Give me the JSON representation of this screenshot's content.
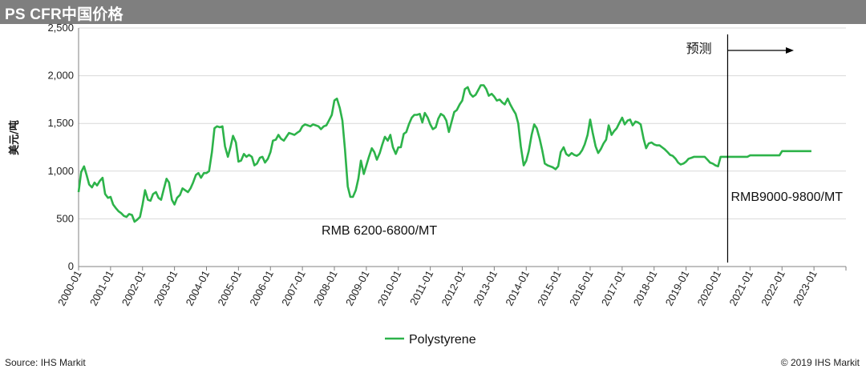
{
  "header": {
    "title": "PS CFR中国价格"
  },
  "footer": {
    "source": "Source: IHS Markit",
    "copyright": "© 2019 IHS Markit"
  },
  "colors": {
    "header_bg": "#7f7f7f",
    "series": "#2db34a",
    "grid": "#d9d9d9",
    "axis": "#808080"
  },
  "chart_data": {
    "type": "line",
    "title": "PS CFR中国价格",
    "ylabel": "美元/吨",
    "xlabel": "",
    "ylim": [
      0,
      2500
    ],
    "yticks": [
      0,
      500,
      1000,
      1500,
      2000,
      2500
    ],
    "ytick_labels": [
      "0",
      "500",
      "1,000",
      "1,500",
      "2,000",
      "2,500"
    ],
    "xlim": [
      2000.0,
      2024.0
    ],
    "xtick_labels": [
      "2000-01",
      "2001-01",
      "2002-01",
      "2003-01",
      "2004-01",
      "2005-01",
      "2006-01",
      "2007-01",
      "2008-01",
      "2009-01",
      "2010-01",
      "2011-01",
      "2012-01",
      "2013-01",
      "2014-01",
      "2015-01",
      "2016-01",
      "2017-01",
      "2018-01",
      "2019-01",
      "2020-01",
      "2021-01",
      "2022-01",
      "2023-01"
    ],
    "grid": "horizontal",
    "legend": {
      "position": "bottom",
      "entries": [
        "Polystyrene"
      ]
    },
    "forecast_line_x": 2020.3,
    "annotations": [
      {
        "text": "预测",
        "x": 2019.0,
        "y": 2240
      },
      {
        "text": "RMB 6200-6800/MT",
        "x": 2007.6,
        "y": 335
      },
      {
        "text": "RMB9000-9800/MT",
        "x": 2020.4,
        "y": 690
      }
    ],
    "series": [
      {
        "name": "Polystyrene",
        "points": [
          [
            2000.0,
            780
          ],
          [
            2000.08,
            990
          ],
          [
            2000.17,
            1050
          ],
          [
            2000.25,
            960
          ],
          [
            2000.33,
            860
          ],
          [
            2000.42,
            830
          ],
          [
            2000.5,
            880
          ],
          [
            2000.58,
            850
          ],
          [
            2000.67,
            900
          ],
          [
            2000.75,
            930
          ],
          [
            2000.83,
            760
          ],
          [
            2000.92,
            720
          ],
          [
            2001.0,
            730
          ],
          [
            2001.08,
            650
          ],
          [
            2001.17,
            610
          ],
          [
            2001.25,
            580
          ],
          [
            2001.33,
            560
          ],
          [
            2001.42,
            530
          ],
          [
            2001.5,
            520
          ],
          [
            2001.58,
            550
          ],
          [
            2001.67,
            540
          ],
          [
            2001.75,
            470
          ],
          [
            2001.83,
            490
          ],
          [
            2001.92,
            520
          ],
          [
            2002.0,
            650
          ],
          [
            2002.08,
            800
          ],
          [
            2002.17,
            700
          ],
          [
            2002.25,
            690
          ],
          [
            2002.33,
            760
          ],
          [
            2002.42,
            780
          ],
          [
            2002.5,
            720
          ],
          [
            2002.58,
            700
          ],
          [
            2002.67,
            820
          ],
          [
            2002.75,
            920
          ],
          [
            2002.83,
            880
          ],
          [
            2002.92,
            700
          ],
          [
            2003.0,
            650
          ],
          [
            2003.08,
            720
          ],
          [
            2003.17,
            750
          ],
          [
            2003.25,
            820
          ],
          [
            2003.33,
            800
          ],
          [
            2003.42,
            780
          ],
          [
            2003.5,
            820
          ],
          [
            2003.58,
            880
          ],
          [
            2003.67,
            960
          ],
          [
            2003.75,
            980
          ],
          [
            2003.83,
            930
          ],
          [
            2003.92,
            980
          ],
          [
            2004.0,
            980
          ],
          [
            2004.08,
            1000
          ],
          [
            2004.17,
            1200
          ],
          [
            2004.25,
            1450
          ],
          [
            2004.33,
            1470
          ],
          [
            2004.42,
            1460
          ],
          [
            2004.5,
            1470
          ],
          [
            2004.58,
            1260
          ],
          [
            2004.67,
            1150
          ],
          [
            2004.75,
            1250
          ],
          [
            2004.83,
            1370
          ],
          [
            2004.92,
            1300
          ],
          [
            2005.0,
            1100
          ],
          [
            2005.08,
            1110
          ],
          [
            2005.17,
            1180
          ],
          [
            2005.25,
            1150
          ],
          [
            2005.33,
            1170
          ],
          [
            2005.42,
            1150
          ],
          [
            2005.5,
            1060
          ],
          [
            2005.58,
            1080
          ],
          [
            2005.67,
            1140
          ],
          [
            2005.75,
            1150
          ],
          [
            2005.83,
            1090
          ],
          [
            2005.92,
            1130
          ],
          [
            2006.0,
            1200
          ],
          [
            2006.08,
            1320
          ],
          [
            2006.17,
            1330
          ],
          [
            2006.25,
            1380
          ],
          [
            2006.33,
            1340
          ],
          [
            2006.42,
            1320
          ],
          [
            2006.5,
            1360
          ],
          [
            2006.58,
            1400
          ],
          [
            2006.67,
            1390
          ],
          [
            2006.75,
            1380
          ],
          [
            2006.83,
            1400
          ],
          [
            2006.92,
            1420
          ],
          [
            2007.0,
            1470
          ],
          [
            2007.08,
            1490
          ],
          [
            2007.17,
            1480
          ],
          [
            2007.25,
            1470
          ],
          [
            2007.33,
            1490
          ],
          [
            2007.42,
            1480
          ],
          [
            2007.5,
            1470
          ],
          [
            2007.58,
            1440
          ],
          [
            2007.67,
            1470
          ],
          [
            2007.75,
            1480
          ],
          [
            2007.83,
            1530
          ],
          [
            2007.92,
            1590
          ],
          [
            2008.0,
            1740
          ],
          [
            2008.08,
            1760
          ],
          [
            2008.17,
            1660
          ],
          [
            2008.25,
            1530
          ],
          [
            2008.33,
            1230
          ],
          [
            2008.42,
            840
          ],
          [
            2008.5,
            730
          ],
          [
            2008.58,
            730
          ],
          [
            2008.67,
            800
          ],
          [
            2008.75,
            920
          ],
          [
            2008.83,
            1110
          ],
          [
            2008.92,
            970
          ],
          [
            2009.0,
            1060
          ],
          [
            2009.08,
            1150
          ],
          [
            2009.17,
            1240
          ],
          [
            2009.25,
            1200
          ],
          [
            2009.33,
            1120
          ],
          [
            2009.42,
            1190
          ],
          [
            2009.5,
            1280
          ],
          [
            2009.58,
            1360
          ],
          [
            2009.67,
            1320
          ],
          [
            2009.75,
            1380
          ],
          [
            2009.83,
            1250
          ],
          [
            2009.92,
            1180
          ],
          [
            2010.0,
            1250
          ],
          [
            2010.08,
            1250
          ],
          [
            2010.17,
            1390
          ],
          [
            2010.25,
            1410
          ],
          [
            2010.33,
            1490
          ],
          [
            2010.42,
            1560
          ],
          [
            2010.5,
            1590
          ],
          [
            2010.58,
            1590
          ],
          [
            2010.67,
            1600
          ],
          [
            2010.75,
            1510
          ],
          [
            2010.83,
            1610
          ],
          [
            2010.92,
            1560
          ],
          [
            2011.0,
            1490
          ],
          [
            2011.08,
            1440
          ],
          [
            2011.17,
            1460
          ],
          [
            2011.25,
            1550
          ],
          [
            2011.33,
            1600
          ],
          [
            2011.42,
            1580
          ],
          [
            2011.5,
            1530
          ],
          [
            2011.58,
            1410
          ],
          [
            2011.67,
            1520
          ],
          [
            2011.75,
            1620
          ],
          [
            2011.83,
            1640
          ],
          [
            2011.92,
            1700
          ],
          [
            2012.0,
            1740
          ],
          [
            2012.08,
            1860
          ],
          [
            2012.17,
            1880
          ],
          [
            2012.25,
            1810
          ],
          [
            2012.33,
            1780
          ],
          [
            2012.42,
            1800
          ],
          [
            2012.5,
            1850
          ],
          [
            2012.58,
            1900
          ],
          [
            2012.67,
            1900
          ],
          [
            2012.75,
            1860
          ],
          [
            2012.83,
            1790
          ],
          [
            2012.92,
            1810
          ],
          [
            2013.0,
            1780
          ],
          [
            2013.08,
            1740
          ],
          [
            2013.17,
            1750
          ],
          [
            2013.25,
            1720
          ],
          [
            2013.33,
            1700
          ],
          [
            2013.42,
            1760
          ],
          [
            2013.5,
            1700
          ],
          [
            2013.58,
            1650
          ],
          [
            2013.67,
            1600
          ],
          [
            2013.75,
            1500
          ],
          [
            2013.83,
            1260
          ],
          [
            2013.92,
            1060
          ],
          [
            2014.0,
            1110
          ],
          [
            2014.08,
            1210
          ],
          [
            2014.17,
            1380
          ],
          [
            2014.25,
            1490
          ],
          [
            2014.33,
            1450
          ],
          [
            2014.42,
            1340
          ],
          [
            2014.5,
            1220
          ],
          [
            2014.58,
            1080
          ],
          [
            2014.67,
            1060
          ],
          [
            2014.75,
            1050
          ],
          [
            2014.83,
            1040
          ],
          [
            2014.92,
            1020
          ],
          [
            2015.0,
            1050
          ],
          [
            2015.08,
            1200
          ],
          [
            2015.17,
            1250
          ],
          [
            2015.25,
            1180
          ],
          [
            2015.33,
            1160
          ],
          [
            2015.42,
            1190
          ],
          [
            2015.5,
            1170
          ],
          [
            2015.58,
            1160
          ],
          [
            2015.67,
            1180
          ],
          [
            2015.75,
            1220
          ],
          [
            2015.83,
            1280
          ],
          [
            2015.92,
            1380
          ],
          [
            2016.0,
            1540
          ],
          [
            2016.08,
            1400
          ],
          [
            2016.17,
            1260
          ],
          [
            2016.25,
            1190
          ],
          [
            2016.33,
            1230
          ],
          [
            2016.42,
            1290
          ],
          [
            2016.5,
            1330
          ],
          [
            2016.58,
            1480
          ],
          [
            2016.67,
            1380
          ],
          [
            2016.75,
            1420
          ],
          [
            2016.83,
            1450
          ],
          [
            2016.92,
            1510
          ],
          [
            2017.0,
            1560
          ],
          [
            2017.08,
            1490
          ],
          [
            2017.17,
            1530
          ],
          [
            2017.25,
            1540
          ],
          [
            2017.33,
            1480
          ],
          [
            2017.42,
            1520
          ],
          [
            2017.5,
            1510
          ],
          [
            2017.58,
            1490
          ],
          [
            2017.67,
            1340
          ],
          [
            2017.75,
            1240
          ],
          [
            2017.83,
            1290
          ],
          [
            2017.92,
            1300
          ],
          [
            2018.0,
            1280
          ],
          [
            2018.08,
            1270
          ],
          [
            2018.17,
            1270
          ],
          [
            2018.25,
            1250
          ],
          [
            2018.33,
            1230
          ],
          [
            2018.42,
            1200
          ],
          [
            2018.5,
            1170
          ],
          [
            2018.58,
            1160
          ],
          [
            2018.67,
            1130
          ],
          [
            2018.75,
            1090
          ],
          [
            2018.83,
            1070
          ],
          [
            2018.92,
            1080
          ],
          [
            2019.0,
            1100
          ],
          [
            2019.08,
            1130
          ],
          [
            2019.17,
            1140
          ],
          [
            2019.25,
            1150
          ],
          [
            2019.33,
            1150
          ],
          [
            2019.42,
            1150
          ],
          [
            2019.5,
            1150
          ],
          [
            2019.58,
            1150
          ],
          [
            2019.67,
            1120
          ],
          [
            2019.75,
            1090
          ],
          [
            2019.83,
            1080
          ],
          [
            2019.92,
            1060
          ],
          [
            2020.0,
            1050
          ],
          [
            2020.08,
            1150
          ],
          [
            2020.17,
            1150
          ],
          [
            2020.33,
            1150
          ],
          [
            2020.5,
            1150
          ],
          [
            2020.67,
            1150
          ],
          [
            2020.83,
            1150
          ],
          [
            2020.92,
            1150
          ],
          [
            2021.0,
            1165
          ],
          [
            2021.17,
            1165
          ],
          [
            2021.33,
            1165
          ],
          [
            2021.5,
            1165
          ],
          [
            2021.67,
            1165
          ],
          [
            2021.83,
            1165
          ],
          [
            2021.92,
            1165
          ],
          [
            2022.0,
            1210
          ],
          [
            2022.17,
            1210
          ],
          [
            2022.33,
            1210
          ],
          [
            2022.5,
            1210
          ],
          [
            2022.67,
            1210
          ],
          [
            2022.83,
            1210
          ],
          [
            2022.92,
            1210
          ]
        ]
      }
    ]
  }
}
